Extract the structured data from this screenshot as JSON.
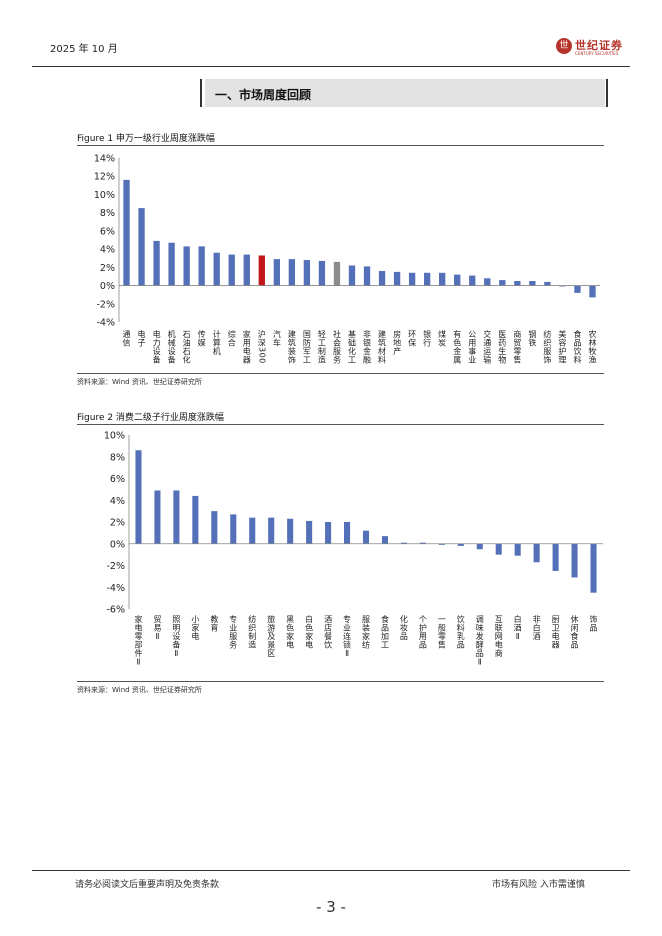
{
  "header": {
    "date": "2025 年 10 月",
    "logo_cn": "世纪证券",
    "logo_en": "CENTURY SECURITIES",
    "logo_seal": "世"
  },
  "section": {
    "title": "一、市场周度回顾"
  },
  "figure1": {
    "title": "Figure 1  申万一级行业周度涨跌幅",
    "source": "资料来源：Wind 资讯、世纪证券研究所"
  },
  "figure2": {
    "title": "Figure 2  消费二级子行业周度涨跌幅",
    "source": "资料来源：Wind 资讯、世纪证券研究所"
  },
  "footer": {
    "disclaimer": "请务必阅读文后重要声明及免责条款",
    "risk": "市场有风险  入市需谨慎",
    "page": "- 3 -"
  },
  "colors": {
    "bar": "#5470b8",
    "highlight": "#c0161c",
    "gray": "#8c8c8c"
  },
  "chart_data": [
    {
      "type": "bar",
      "title": "",
      "xlabel": "",
      "ylabel": "",
      "ylim": [
        -4,
        14
      ],
      "yticks": [
        -4,
        -2,
        0,
        2,
        4,
        6,
        8,
        10,
        12,
        14
      ],
      "tick_format": "percent",
      "grid": false,
      "categories": [
        "通信",
        "电子",
        "电力设备",
        "机械设备",
        "石油石化",
        "传媒",
        "计算机",
        "综合",
        "家用电器",
        "沪深300",
        "汽车",
        "建筑装饰",
        "国防军工",
        "轻工制造",
        "社会服务",
        "基础化工",
        "非银金融",
        "建筑材料",
        "房地产",
        "环保",
        "银行",
        "煤炭",
        "有色金属",
        "公用事业",
        "交通运输",
        "医药生物",
        "商贸零售",
        "钢铁",
        "纺织服饰",
        "美容护理",
        "食品饮料",
        "农林牧渔"
      ],
      "values": [
        11.6,
        8.5,
        4.9,
        4.7,
        4.3,
        4.3,
        3.6,
        3.4,
        3.4,
        3.3,
        2.9,
        2.9,
        2.8,
        2.7,
        2.6,
        2.2,
        2.1,
        1.6,
        1.5,
        1.4,
        1.4,
        1.4,
        1.2,
        1.1,
        0.8,
        0.6,
        0.5,
        0.5,
        0.4,
        -0.1,
        -0.8,
        -1.3
      ],
      "bar_colors": [
        "#5470b8",
        "#5470b8",
        "#5470b8",
        "#5470b8",
        "#5470b8",
        "#5470b8",
        "#5470b8",
        "#5470b8",
        "#5470b8",
        "#c0161c",
        "#5470b8",
        "#5470b8",
        "#5470b8",
        "#5470b8",
        "#8c8c8c",
        "#5470b8",
        "#5470b8",
        "#5470b8",
        "#5470b8",
        "#5470b8",
        "#5470b8",
        "#5470b8",
        "#5470b8",
        "#5470b8",
        "#5470b8",
        "#5470b8",
        "#5470b8",
        "#5470b8",
        "#5470b8",
        "#5470b8",
        "#5470b8",
        "#5470b8"
      ]
    },
    {
      "type": "bar",
      "title": "",
      "xlabel": "",
      "ylabel": "",
      "ylim": [
        -6,
        10
      ],
      "yticks": [
        -6,
        -4,
        -2,
        0,
        2,
        4,
        6,
        8,
        10
      ],
      "tick_format": "percent",
      "grid": false,
      "categories": [
        "家电零部件Ⅱ",
        "贸易Ⅱ",
        "照明设备Ⅱ",
        "小家电",
        "教育",
        "专业服务",
        "纺织制造",
        "旅游及景区",
        "黑色家电",
        "白色家电",
        "酒店餐饮",
        "专业连锁Ⅱ",
        "服装家纺",
        "食品加工",
        "化妆品",
        "个护用品",
        "一般零售",
        "饮料乳品",
        "调味发酵品Ⅱ",
        "互联网电商",
        "白酒Ⅱ",
        "非白酒",
        "厨卫电器",
        "休闲食品",
        "饰品"
      ],
      "values": [
        8.6,
        4.9,
        4.9,
        4.4,
        3.0,
        2.7,
        2.4,
        2.4,
        2.3,
        2.1,
        2.0,
        2.0,
        1.2,
        0.7,
        0.1,
        0.1,
        -0.1,
        -0.2,
        -0.5,
        -1.0,
        -1.1,
        -1.7,
        -2.5,
        -3.1,
        -4.5
      ],
      "bar_colors": [
        "#5470b8",
        "#5470b8",
        "#5470b8",
        "#5470b8",
        "#5470b8",
        "#5470b8",
        "#5470b8",
        "#5470b8",
        "#5470b8",
        "#5470b8",
        "#5470b8",
        "#5470b8",
        "#5470b8",
        "#5470b8",
        "#5470b8",
        "#5470b8",
        "#5470b8",
        "#5470b8",
        "#5470b8",
        "#5470b8",
        "#5470b8",
        "#5470b8",
        "#5470b8",
        "#5470b8",
        "#5470b8"
      ]
    }
  ]
}
